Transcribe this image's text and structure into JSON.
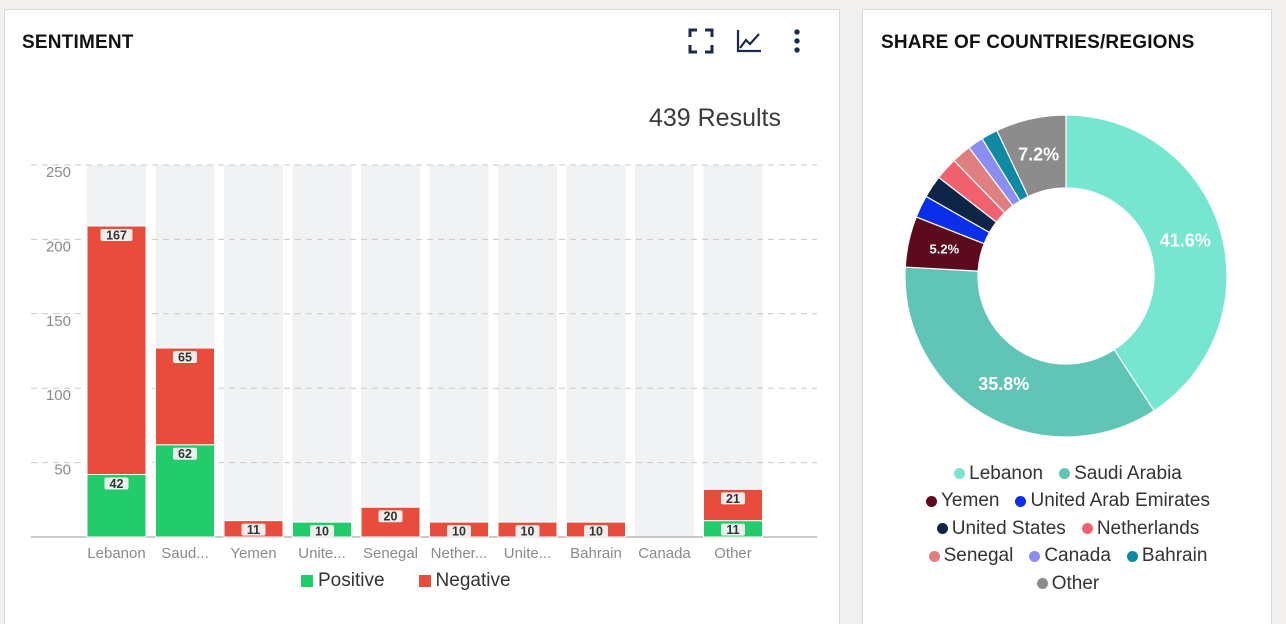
{
  "sentiment": {
    "title": "SENTIMENT",
    "results_label": "439 Results",
    "icons": [
      "fullscreen-icon",
      "line-chart-icon",
      "more-vert-icon"
    ]
  },
  "share": {
    "title": "SHARE OF COUNTRIES/REGIONS"
  },
  "chart_data": [
    {
      "type": "bar",
      "stacked": true,
      "categories": [
        "Lebanon",
        "Saud...",
        "Yemen",
        "Unite...",
        "Senegal",
        "Nether...",
        "Unite...",
        "Bahrain",
        "Canada",
        "Other"
      ],
      "series": [
        {
          "name": "Positive",
          "color": "#22cc6a",
          "values": [
            42,
            62,
            0,
            10,
            0,
            0,
            0,
            0,
            0,
            11
          ]
        },
        {
          "name": "Negative",
          "color": "#e84c3d",
          "values": [
            167,
            65,
            11,
            0,
            20,
            10,
            10,
            10,
            0,
            21
          ]
        }
      ],
      "ylim": [
        0,
        250
      ],
      "yticks": [
        50,
        100,
        150,
        200,
        250
      ],
      "grid": true,
      "legend": "bottom"
    },
    {
      "type": "pie",
      "donut": true,
      "slices": [
        {
          "label": "Lebanon",
          "value": 41.6,
          "color": "#76e6d0",
          "display": "41.6%"
        },
        {
          "label": "Saudi Arabia",
          "value": 35.8,
          "color": "#60c5b6",
          "display": "35.8%"
        },
        {
          "label": "Yemen",
          "value": 5.2,
          "color": "#5c0a1e",
          "display": "5.2%"
        },
        {
          "label": "United Arab Emirates",
          "value": 2.3,
          "color": "#0b2ee8",
          "display": ""
        },
        {
          "label": "United States",
          "value": 2.3,
          "color": "#0f2547",
          "display": ""
        },
        {
          "label": "Netherlands",
          "value": 2.3,
          "color": "#f2616e",
          "display": ""
        },
        {
          "label": "Senegal",
          "value": 2.0,
          "color": "#e07f7f",
          "display": ""
        },
        {
          "label": "Canada",
          "value": 1.6,
          "color": "#8a8ef0",
          "display": ""
        },
        {
          "label": "Bahrain",
          "value": 1.7,
          "color": "#0e8aa3",
          "display": ""
        },
        {
          "label": "Other",
          "value": 7.2,
          "color": "#8c8c8c",
          "display": "7.2%"
        }
      ],
      "legend": "bottom"
    }
  ]
}
